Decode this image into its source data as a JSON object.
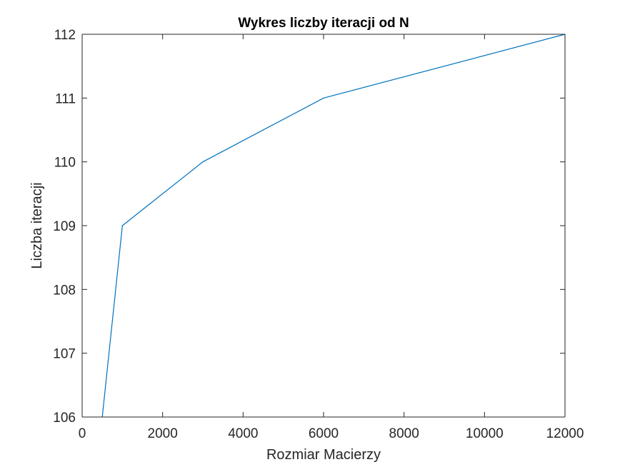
{
  "chart_data": {
    "type": "line",
    "title": "Wykres liczby iteracji od N",
    "xlabel": "Rozmiar Macierzy",
    "ylabel": "Liczba iteracji",
    "xlim": [
      0,
      12000
    ],
    "ylim": [
      106,
      112
    ],
    "x_ticks": [
      0,
      2000,
      4000,
      6000,
      8000,
      10000,
      12000
    ],
    "x_tick_labels": [
      "0",
      "2000",
      "4000",
      "6000",
      "8000",
      "10000",
      "12000"
    ],
    "y_ticks": [
      106,
      107,
      108,
      109,
      110,
      111,
      112
    ],
    "y_tick_labels": [
      "106",
      "107",
      "108",
      "109",
      "110",
      "111",
      "112"
    ],
    "grid": false,
    "series": [
      {
        "color": "#0072BD",
        "x": [
          500,
          1000,
          3000,
          6000,
          12000
        ],
        "y": [
          106,
          109,
          110,
          111,
          112
        ]
      }
    ]
  }
}
